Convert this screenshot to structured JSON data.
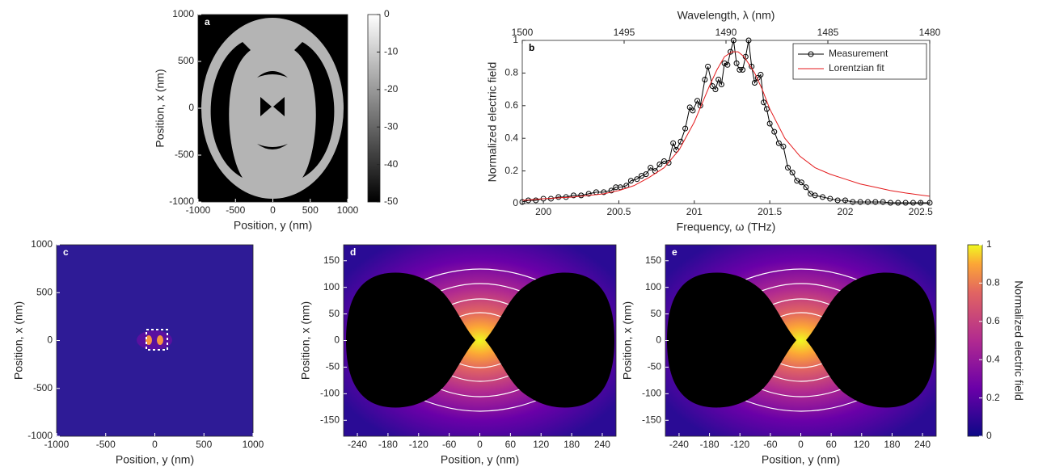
{
  "chart_data": [
    {
      "type": "heatmap",
      "label": "a",
      "xlabel": "Position, y (nm)",
      "ylabel": "Position, x (nm)",
      "xlim": [
        -1000,
        1000
      ],
      "ylim": [
        -1000,
        1000
      ],
      "xticks": [
        -1000,
        -500,
        0,
        500,
        1000
      ],
      "yticks": [
        -1000,
        -500,
        0,
        500,
        1000
      ],
      "colorbar": {
        "clim": [
          -50,
          0
        ],
        "ticks": [
          -50,
          -40,
          -30,
          -20,
          -10,
          0
        ]
      }
    },
    {
      "type": "line",
      "label": "b",
      "xlabel": "Frequency, ω (THz)",
      "x2label": "Wavelength, λ (nm)",
      "ylabel": "Normalized electric field",
      "xlim": [
        199.86,
        202.56
      ],
      "xticks": [
        200,
        200.5,
        201,
        201.5,
        202,
        202.5
      ],
      "x2lim": [
        1500,
        1480
      ],
      "x2ticks": [
        1500,
        1495,
        1490,
        1485,
        1480
      ],
      "ylim": [
        0,
        1
      ],
      "yticks": [
        0,
        0.2,
        0.4,
        0.6,
        0.8,
        1
      ],
      "legend": "upper right",
      "series": [
        {
          "name": "Measurement",
          "color": "#000000",
          "marker": "circle",
          "x": [
            199.86,
            199.9,
            199.95,
            200.0,
            200.05,
            200.1,
            200.15,
            200.2,
            200.25,
            200.3,
            200.35,
            200.4,
            200.45,
            200.48,
            200.51,
            200.55,
            200.58,
            200.62,
            200.65,
            200.68,
            200.71,
            200.74,
            200.77,
            200.8,
            200.83,
            200.86,
            200.88,
            200.91,
            200.94,
            200.97,
            200.99,
            201.02,
            201.04,
            201.07,
            201.09,
            201.12,
            201.14,
            201.16,
            201.18,
            201.2,
            201.22,
            201.24,
            201.26,
            201.28,
            201.3,
            201.32,
            201.34,
            201.36,
            201.38,
            201.4,
            201.42,
            201.44,
            201.46,
            201.48,
            201.5,
            201.53,
            201.56,
            201.59,
            201.62,
            201.65,
            201.68,
            201.71,
            201.74,
            201.77,
            201.8,
            201.85,
            201.9,
            201.95,
            202.0,
            202.05,
            202.1,
            202.15,
            202.2,
            202.25,
            202.3,
            202.35,
            202.4,
            202.45,
            202.5,
            202.56
          ],
          "values": [
            0.01,
            0.02,
            0.02,
            0.03,
            0.03,
            0.04,
            0.04,
            0.05,
            0.05,
            0.06,
            0.07,
            0.07,
            0.08,
            0.1,
            0.1,
            0.11,
            0.14,
            0.15,
            0.17,
            0.18,
            0.22,
            0.2,
            0.24,
            0.26,
            0.25,
            0.37,
            0.33,
            0.38,
            0.46,
            0.59,
            0.57,
            0.63,
            0.6,
            0.76,
            0.84,
            0.72,
            0.7,
            0.76,
            0.73,
            0.86,
            0.85,
            0.93,
            1.0,
            0.86,
            0.82,
            0.82,
            0.9,
            1.0,
            0.84,
            0.74,
            0.77,
            0.79,
            0.62,
            0.58,
            0.49,
            0.44,
            0.37,
            0.35,
            0.22,
            0.19,
            0.14,
            0.13,
            0.1,
            0.06,
            0.05,
            0.04,
            0.03,
            0.02,
            0.02,
            0.01,
            0.01,
            0.01,
            0.01,
            0.01,
            0.005,
            0.005,
            0.005,
            0.005,
            0.005,
            0.005
          ]
        },
        {
          "name": "Lorentzian fit",
          "color": "#e41a1c",
          "x": [
            199.86,
            200.0,
            200.2,
            200.4,
            200.5,
            200.6,
            200.7,
            200.8,
            200.9,
            201.0,
            201.1,
            201.15,
            201.2,
            201.25,
            201.29,
            201.33,
            201.4,
            201.45,
            201.5,
            201.6,
            201.7,
            201.8,
            201.9,
            202.0,
            202.1,
            202.2,
            202.3,
            202.4,
            202.56
          ],
          "values": [
            0.02,
            0.03,
            0.04,
            0.06,
            0.08,
            0.11,
            0.16,
            0.22,
            0.33,
            0.5,
            0.72,
            0.82,
            0.9,
            0.93,
            0.93,
            0.9,
            0.8,
            0.7,
            0.58,
            0.4,
            0.29,
            0.22,
            0.18,
            0.15,
            0.12,
            0.1,
            0.08,
            0.065,
            0.045
          ]
        }
      ]
    },
    {
      "type": "heatmap",
      "label": "c",
      "xlabel": "Position, y (nm)",
      "ylabel": "Position, x (nm)",
      "xlim": [
        -1000,
        1000
      ],
      "ylim": [
        -1000,
        1000
      ],
      "xticks": [
        -1000,
        -500,
        0,
        500,
        1000
      ],
      "yticks": [
        -1000,
        -500,
        0,
        500,
        1000
      ]
    },
    {
      "type": "heatmap",
      "label": "d",
      "xlabel": "Position, y (nm)",
      "ylabel": "Position, x (nm)",
      "xlim": [
        -267,
        267
      ],
      "ylim": [
        -180,
        180
      ],
      "xticks": [
        -240,
        -180,
        -120,
        -60,
        0,
        60,
        120,
        180,
        240
      ],
      "yticks": [
        -150,
        -100,
        -50,
        0,
        50,
        100,
        150
      ]
    },
    {
      "type": "heatmap",
      "label": "e",
      "xlabel": "Position, y (nm)",
      "ylabel": "Position, x (nm)",
      "xlim": [
        -267,
        267
      ],
      "ylim": [
        -180,
        180
      ],
      "xticks": [
        -240,
        -180,
        -120,
        -60,
        0,
        60,
        120,
        180,
        240
      ],
      "yticks": [
        -150,
        -100,
        -50,
        0,
        50,
        100,
        150
      ],
      "colorbar": {
        "clim": [
          0,
          1
        ],
        "ticks": [
          0,
          0.2,
          0.4,
          0.6,
          0.8,
          1
        ],
        "label": "Normalized electric field"
      }
    }
  ]
}
